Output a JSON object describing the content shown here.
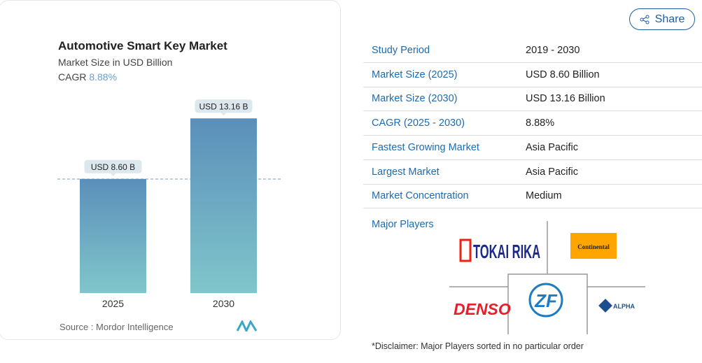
{
  "chart_data": {
    "type": "bar",
    "title": "Automotive Smart Key Market",
    "subtitle": "Market Size in USD Billion",
    "cagr_label": "CAGR",
    "cagr_value": "8.88%",
    "categories": [
      "2025",
      "2030"
    ],
    "values": [
      8.6,
      13.16
    ],
    "data_labels": [
      "USD 8.60 B",
      "USD 13.16 B"
    ],
    "ylim": [
      0,
      14.5
    ],
    "source": "Source :  Mordor Intelligence"
  },
  "share_label": "Share",
  "table": [
    {
      "key": "Study Period",
      "value": "2019 - 2030"
    },
    {
      "key": "Market Size (2025)",
      "value": "USD 8.60 Billion"
    },
    {
      "key": "Market Size (2030)",
      "value": "USD 13.16 Billion"
    },
    {
      "key": "CAGR (2025 - 2030)",
      "value": "8.88%"
    },
    {
      "key": "Fastest Growing Market",
      "value": "Asia Pacific"
    },
    {
      "key": "Largest Market",
      "value": "Asia Pacific"
    },
    {
      "key": "Market Concentration",
      "value": "Medium"
    }
  ],
  "major_players_label": "Major Players",
  "players": [
    "TOKAI RIKA",
    "Continental",
    "DENSO",
    "ZF",
    "ALPHA"
  ],
  "disclaimer": "*Disclaimer: Major Players sorted in no particular order",
  "colors": {
    "bar_top": "#5b8fba",
    "bar_bottom": "#80c6ca",
    "accent": "#1d6bb0"
  }
}
